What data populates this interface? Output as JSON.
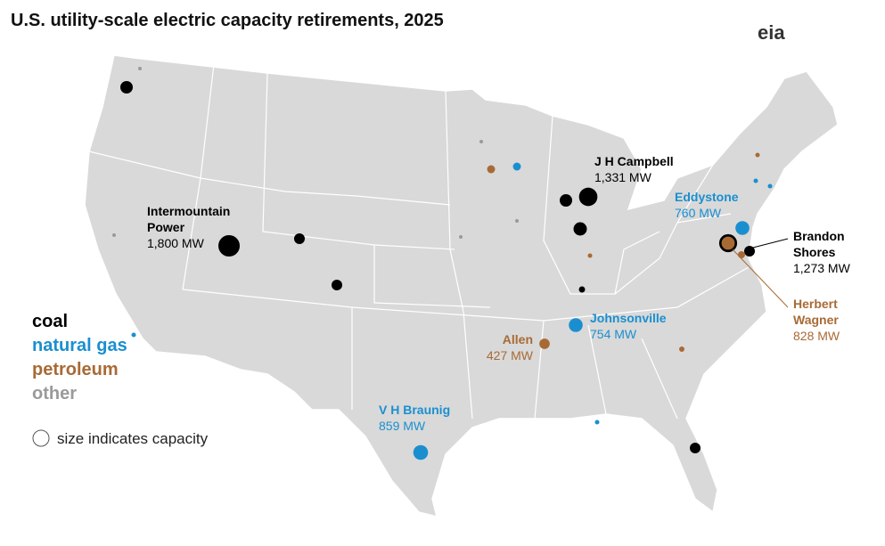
{
  "title": "U.S. utility-scale electric capacity retirements, 2025",
  "logo": "eia",
  "legend": [
    {
      "label": "coal",
      "color": "#000000"
    },
    {
      "label": "natural gas",
      "color": "#1a8fd0"
    },
    {
      "label": "petroleum",
      "color": "#a86a35"
    },
    {
      "label": "other",
      "color": "#9a9a9a"
    }
  ],
  "size_note": "size indicates capacity",
  "plants": [
    {
      "name": "Intermountain Power",
      "fuel": "coal",
      "capacity": 1800,
      "capacity_label": "1,800 MW"
    },
    {
      "name": "J H Campbell",
      "fuel": "coal",
      "capacity": 1331,
      "capacity_label": "1,331 MW"
    },
    {
      "name": "Eddystone",
      "fuel": "natural gas",
      "capacity": 760,
      "capacity_label": "760 MW"
    },
    {
      "name": "Brandon Shores",
      "fuel": "coal",
      "capacity": 1273,
      "capacity_label": "1,273 MW"
    },
    {
      "name": "Herbert Wagner",
      "fuel": "petroleum",
      "capacity": 828,
      "capacity_label": "828 MW"
    },
    {
      "name": "Johnsonville",
      "fuel": "natural gas",
      "capacity": 754,
      "capacity_label": "754 MW"
    },
    {
      "name": "Allen",
      "fuel": "petroleum",
      "capacity": 427,
      "capacity_label": "427 MW"
    },
    {
      "name": "V H Braunig",
      "fuel": "natural gas",
      "capacity": 859,
      "capacity_label": "859 MW"
    }
  ],
  "unlabeled_plants": [
    {
      "fuel": "coal",
      "capacity": 610
    },
    {
      "fuel": "coal",
      "capacity": 450
    },
    {
      "fuel": "coal",
      "capacity": 450
    },
    {
      "fuel": "coal",
      "capacity": 610
    },
    {
      "fuel": "coal",
      "capacity": 700
    },
    {
      "fuel": "coal",
      "capacity": 150
    },
    {
      "fuel": "coal",
      "capacity": 450
    },
    {
      "fuel": "coal",
      "capacity": 450
    },
    {
      "fuel": "natural gas",
      "capacity": 250
    },
    {
      "fuel": "natural gas",
      "capacity": 80
    },
    {
      "fuel": "natural gas",
      "capacity": 80
    },
    {
      "fuel": "natural gas",
      "capacity": 80
    },
    {
      "fuel": "natural gas",
      "capacity": 80
    },
    {
      "fuel": "petroleum",
      "capacity": 250
    },
    {
      "fuel": "petroleum",
      "capacity": 80
    },
    {
      "fuel": "petroleum",
      "capacity": 80
    },
    {
      "fuel": "petroleum",
      "capacity": 110
    },
    {
      "fuel": "petroleum",
      "capacity": 200
    },
    {
      "fuel": "other",
      "capacity": 50
    },
    {
      "fuel": "other",
      "capacity": 50
    },
    {
      "fuel": "other",
      "capacity": 50
    },
    {
      "fuel": "other",
      "capacity": 50
    },
    {
      "fuel": "other",
      "capacity": 50
    }
  ]
}
